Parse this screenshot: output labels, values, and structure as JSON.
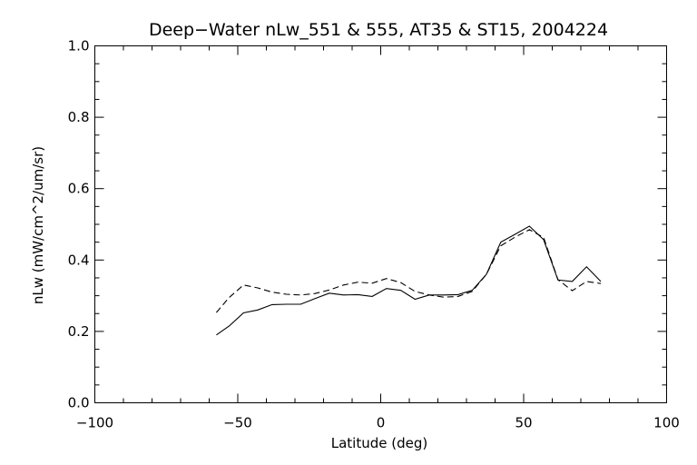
{
  "chart_data": {
    "type": "line",
    "title": "Deep−Water nLw_551 & 555, AT35 & ST15, 2004224",
    "xlabel": "Latitude (deg)",
    "ylabel": "nLw (mW/cm^2/um/sr)",
    "xlim": [
      -100,
      100
    ],
    "ylim": [
      0.0,
      1.0
    ],
    "xticks": [
      "−100",
      "−50",
      "0",
      "50",
      "100"
    ],
    "yticks": [
      "0.0",
      "0.2",
      "0.4",
      "0.6",
      "0.8",
      "1.0"
    ],
    "xtick_values": [
      -100,
      -50,
      0,
      50,
      100
    ],
    "ytick_values": [
      0.0,
      0.2,
      0.4,
      0.6,
      0.8,
      1.0
    ],
    "grid": false,
    "series": [
      {
        "style": "solid",
        "x": [
          -57.5,
          -53,
          -48,
          -43,
          -38,
          -33,
          -28,
          -23,
          -18,
          -13,
          -8,
          -3,
          2,
          7,
          12,
          17,
          22,
          27,
          32,
          37,
          42,
          47,
          52,
          57,
          62,
          67,
          72,
          77
        ],
        "y": [
          0.19,
          0.215,
          0.252,
          0.26,
          0.275,
          0.276,
          0.276,
          0.292,
          0.307,
          0.302,
          0.303,
          0.298,
          0.32,
          0.315,
          0.29,
          0.302,
          0.302,
          0.303,
          0.315,
          0.36,
          0.45,
          0.472,
          0.495,
          0.457,
          0.344,
          0.34,
          0.381,
          0.34
        ]
      },
      {
        "style": "dashed",
        "x": [
          -57.5,
          -53,
          -48,
          -43,
          -38,
          -33,
          -28,
          -23,
          -18,
          -13,
          -8,
          -3,
          2,
          7,
          12,
          17,
          22,
          27,
          32,
          37,
          42,
          47,
          52,
          57,
          62,
          67,
          72,
          77
        ],
        "y": [
          0.253,
          0.295,
          0.33,
          0.322,
          0.31,
          0.304,
          0.302,
          0.306,
          0.316,
          0.33,
          0.338,
          0.335,
          0.348,
          0.337,
          0.312,
          0.302,
          0.296,
          0.298,
          0.312,
          0.36,
          0.44,
          0.464,
          0.485,
          0.463,
          0.345,
          0.314,
          0.34,
          0.334
        ]
      }
    ]
  }
}
